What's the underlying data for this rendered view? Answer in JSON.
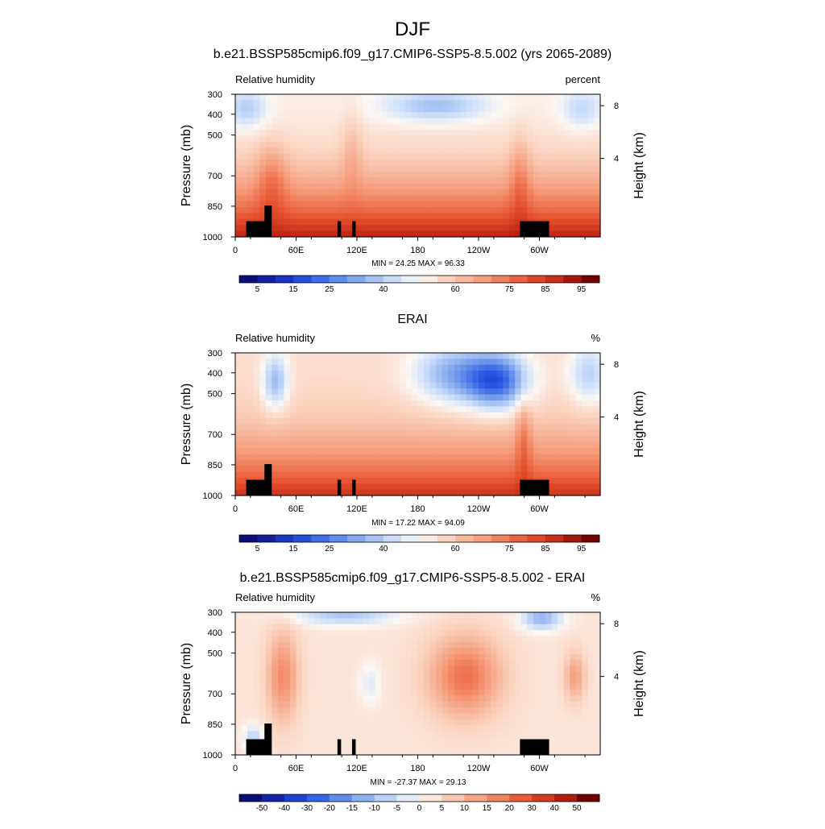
{
  "figure": {
    "title": "DJF"
  },
  "chart_data": [
    {
      "type": "heatmap",
      "title": "b.e21.BSSP585cmip6.f09_g17.CMIP6-SSP5-8.5.002 (yrs 2065-2089)",
      "left_label": "Relative humidity",
      "right_label": "percent",
      "ylabel": "Pressure (mb)",
      "y2label": "Height (km)",
      "xticks": [
        "0",
        "60E",
        "120E",
        "180",
        "120W",
        "60W"
      ],
      "yticks": [
        "300",
        "400",
        "500",
        "700",
        "850",
        "1000"
      ],
      "y2ticks": [
        "8",
        "4"
      ],
      "ylim": [
        1000,
        300
      ],
      "min_label": "MIN =  24.25  MAX =  96.33",
      "min": 24.25,
      "max": 96.33,
      "colorbar_levels": [
        5,
        10,
        15,
        20,
        25,
        30,
        35,
        40,
        45,
        50,
        55,
        60,
        65,
        70,
        75,
        80,
        85,
        90,
        95
      ],
      "colorbar_labels": [
        "5",
        "15",
        "25",
        "40",
        "60",
        "75",
        "85",
        "95"
      ],
      "colormap": "blue-white-red"
    },
    {
      "type": "heatmap",
      "title": "ERAI",
      "left_label": "Relative humidity",
      "right_label": "%",
      "ylabel": "Pressure (mb)",
      "y2label": "Height (km)",
      "xticks": [
        "0",
        "60E",
        "120E",
        "180",
        "120W",
        "60W"
      ],
      "yticks": [
        "300",
        "400",
        "500",
        "700",
        "850",
        "1000"
      ],
      "y2ticks": [
        "8",
        "4"
      ],
      "ylim": [
        1000,
        300
      ],
      "min_label": "MIN =  17.22  MAX =  94.09",
      "min": 17.22,
      "max": 94.09,
      "colorbar_levels": [
        5,
        10,
        15,
        20,
        25,
        30,
        35,
        40,
        45,
        50,
        55,
        60,
        65,
        70,
        75,
        80,
        85,
        90,
        95
      ],
      "colorbar_labels": [
        "5",
        "15",
        "25",
        "40",
        "60",
        "75",
        "85",
        "95"
      ],
      "colormap": "blue-white-red"
    },
    {
      "type": "heatmap",
      "title": "b.e21.BSSP585cmip6.f09_g17.CMIP6-SSP5-8.5.002 - ERAI",
      "left_label": "Relative humidity",
      "right_label": "%",
      "ylabel": "Pressure (mb)",
      "y2label": "Height (km)",
      "xticks": [
        "0",
        "60E",
        "120E",
        "180",
        "120W",
        "60W"
      ],
      "yticks": [
        "300",
        "400",
        "500",
        "700",
        "850",
        "1000"
      ],
      "y2ticks": [
        "8",
        "4"
      ],
      "ylim": [
        1000,
        300
      ],
      "min_label": "MIN = -27.37  MAX =  29.13",
      "min": -27.37,
      "max": 29.13,
      "colorbar_levels": [
        -50,
        -40,
        -30,
        -20,
        -15,
        -10,
        -5,
        0,
        5,
        10,
        15,
        20,
        30,
        40,
        50
      ],
      "colorbar_labels": [
        "-50",
        "-40",
        "-30",
        "-20",
        "-15",
        "-10",
        "-5",
        "0",
        "5",
        "10",
        "15",
        "20",
        "30",
        "40",
        "50"
      ],
      "colormap": "blue-white-red"
    }
  ]
}
